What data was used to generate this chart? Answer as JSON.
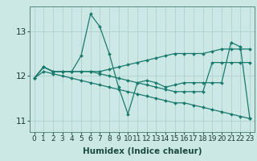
{
  "title": "",
  "xlabel": "Humidex (Indice chaleur)",
  "bg_color": "#cce8e4",
  "grid_color": "#aaccca",
  "line_color": "#1a7a6e",
  "ylim": [
    10.75,
    13.55
  ],
  "xlim": [
    -0.5,
    23.5
  ],
  "yticks": [
    11,
    12,
    13
  ],
  "xticks": [
    0,
    1,
    2,
    3,
    4,
    5,
    6,
    7,
    8,
    9,
    10,
    11,
    12,
    13,
    14,
    15,
    16,
    17,
    18,
    19,
    20,
    21,
    22,
    23
  ],
  "series": [
    [
      11.95,
      12.2,
      12.1,
      12.1,
      12.1,
      12.45,
      13.38,
      13.1,
      12.5,
      11.75,
      11.15,
      11.85,
      11.9,
      11.85,
      11.75,
      11.8,
      11.85,
      11.85,
      11.85,
      11.85,
      11.85,
      12.75,
      12.65,
      11.05
    ],
    [
      11.95,
      12.2,
      12.1,
      12.1,
      12.1,
      12.1,
      12.1,
      12.1,
      12.15,
      12.2,
      12.25,
      12.3,
      12.35,
      12.4,
      12.45,
      12.5,
      12.5,
      12.5,
      12.5,
      12.55,
      12.6,
      12.6,
      12.6,
      12.6
    ],
    [
      11.95,
      12.1,
      12.05,
      12.0,
      11.95,
      11.9,
      11.85,
      11.8,
      11.75,
      11.7,
      11.65,
      11.6,
      11.55,
      11.5,
      11.45,
      11.4,
      11.4,
      11.35,
      11.3,
      11.25,
      11.2,
      11.15,
      11.1,
      11.05
    ],
    [
      11.95,
      12.2,
      12.1,
      12.1,
      12.1,
      12.1,
      12.1,
      12.05,
      12.0,
      11.95,
      11.9,
      11.85,
      11.8,
      11.75,
      11.7,
      11.65,
      11.65,
      11.65,
      11.65,
      12.3,
      12.3,
      12.3,
      12.3,
      12.3
    ]
  ],
  "marker": "D",
  "markersize": 2.0,
  "linewidth": 0.9,
  "tick_fontsize": 6.5,
  "xlabel_fontsize": 7.5,
  "ylabel_fontsize": 7.5
}
